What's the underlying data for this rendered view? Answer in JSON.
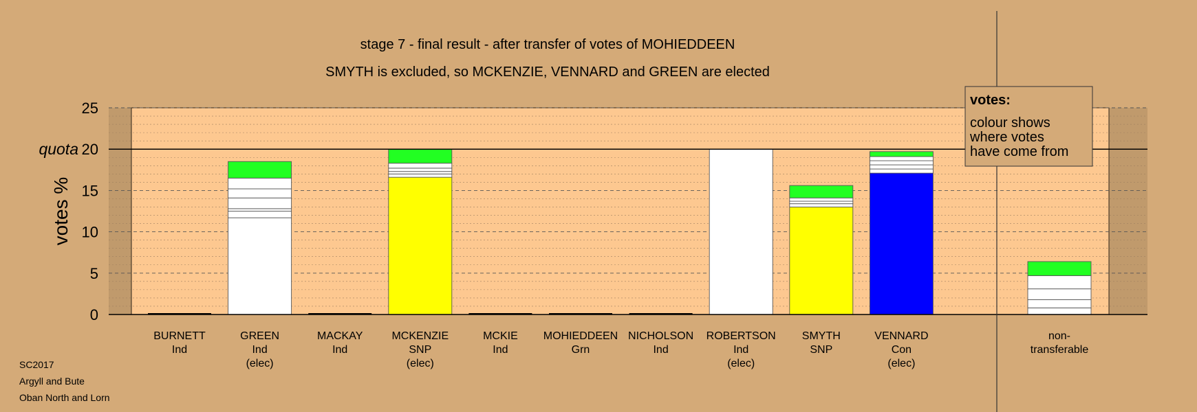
{
  "chart_data": {
    "type": "bar",
    "stacked": true,
    "title": "stage 7 - final result - after transfer of votes of MOHIEDDEEN",
    "subtitle": "SMYTH is excluded, so MCKENZIE, VENNARD and GREEN are elected",
    "ylabel": "votes %",
    "ylim": [
      0,
      25
    ],
    "yticks": [
      0,
      5,
      10,
      15,
      20,
      25
    ],
    "quota": {
      "label": "quota",
      "value": 20
    },
    "grid": true,
    "categories": [
      {
        "name": "BURNETT",
        "party": "Ind",
        "status": "",
        "segments": []
      },
      {
        "name": "GREEN",
        "party": "Ind",
        "status": "(elec)",
        "segments": [
          {
            "value": 11.7,
            "color": "#ffffff"
          },
          {
            "value": 0.8,
            "color": "#ffffff"
          },
          {
            "value": 0.3,
            "color": "#ffffff"
          },
          {
            "value": 1.3,
            "color": "#ffffff"
          },
          {
            "value": 1.1,
            "color": "#ffffff"
          },
          {
            "value": 1.3,
            "color": "#ffffff"
          },
          {
            "value": 2.0,
            "color": "#22ff22"
          }
        ]
      },
      {
        "name": "MACKAY",
        "party": "Ind",
        "status": "",
        "segments": []
      },
      {
        "name": "MCKENZIE",
        "party": "SNP",
        "status": "(elec)",
        "segments": [
          {
            "value": 16.6,
            "color": "#ffff00"
          },
          {
            "value": 0.4,
            "color": "#ffffff"
          },
          {
            "value": 0.3,
            "color": "#ffffff"
          },
          {
            "value": 0.4,
            "color": "#ffffff"
          },
          {
            "value": 0.6,
            "color": "#ffffff"
          },
          {
            "value": 1.7,
            "color": "#22ff22"
          }
        ]
      },
      {
        "name": "MCKIE",
        "party": "Ind",
        "status": "",
        "segments": []
      },
      {
        "name": "MOHIEDDEEN",
        "party": "Grn",
        "status": "",
        "segments": []
      },
      {
        "name": "NICHOLSON",
        "party": "Ind",
        "status": "",
        "segments": []
      },
      {
        "name": "ROBERTSON",
        "party": "Ind",
        "status": "(elec)",
        "segments": [
          {
            "value": 20.0,
            "color": "#ffffff"
          }
        ]
      },
      {
        "name": "SMYTH",
        "party": "SNP",
        "status": "",
        "segments": [
          {
            "value": 13.0,
            "color": "#ffff00"
          },
          {
            "value": 0.4,
            "color": "#ffffff"
          },
          {
            "value": 0.3,
            "color": "#ffffff"
          },
          {
            "value": 0.4,
            "color": "#ffffff"
          },
          {
            "value": 1.5,
            "color": "#22ff22"
          }
        ]
      },
      {
        "name": "VENNARD",
        "party": "Con",
        "status": "(elec)",
        "segments": [
          {
            "value": 17.1,
            "color": "#0000ff"
          },
          {
            "value": 0.5,
            "color": "#ffffff"
          },
          {
            "value": 0.5,
            "color": "#ffffff"
          },
          {
            "value": 0.5,
            "color": "#ffffff"
          },
          {
            "value": 0.5,
            "color": "#ffffff"
          },
          {
            "value": 0.6,
            "color": "#22ff22"
          }
        ]
      }
    ],
    "nontransferable": {
      "label_line1": "non-",
      "label_line2": "transferable",
      "segments": [
        {
          "value": 0.8,
          "color": "#ffffff"
        },
        {
          "value": 1.0,
          "color": "#ffffff"
        },
        {
          "value": 1.3,
          "color": "#ffffff"
        },
        {
          "value": 1.6,
          "color": "#ffffff"
        },
        {
          "value": 1.7,
          "color": "#22ff22"
        }
      ]
    },
    "legend": {
      "placement": "top-right",
      "title": "votes:",
      "lines": [
        "colour shows",
        "where votes",
        "have come from"
      ]
    }
  },
  "footer": {
    "lines": [
      "SC2017",
      "Argyll and Bute",
      "Oban North and Lorn"
    ]
  },
  "colors": {
    "background": "#d4aa78",
    "plot_area": "#fdc890",
    "shaded_band": "#c09a6c"
  }
}
